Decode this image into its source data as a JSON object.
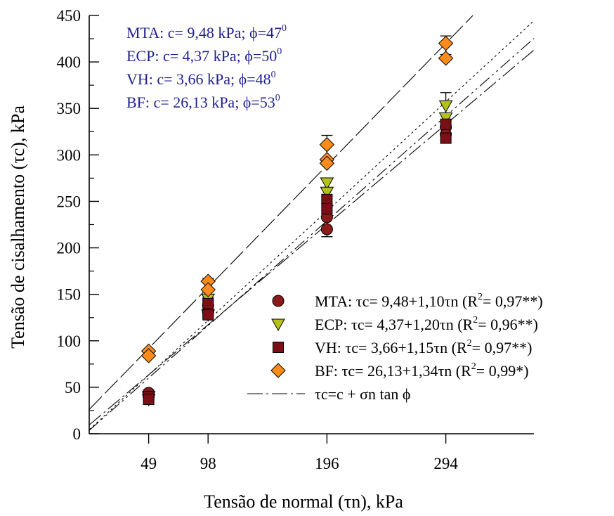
{
  "chart_data": {
    "type": "scatter",
    "xlabel": "Tensão de normal (τn), kPa",
    "ylabel": "Tensão de cisalhamento (τc), kPa",
    "xlim": [
      0,
      360
    ],
    "ylim": [
      0,
      450
    ],
    "x_ticks": [
      49,
      98,
      196,
      294
    ],
    "y_ticks": [
      0,
      50,
      100,
      150,
      200,
      250,
      300,
      350,
      400,
      450
    ],
    "grid": false,
    "legend_position": "bottom-right",
    "parameters": [
      {
        "label": "MTA: c= 9,48 kPa; ϕ=47",
        "sup": "0"
      },
      {
        "label": "ECP: c= 4,37 kPa; ϕ=50",
        "sup": "0"
      },
      {
        "label": "VH: c= 3,66 kPa; ϕ=48",
        "sup": "0"
      },
      {
        "label": "BF: c= 26,13 kPa; ϕ=53",
        "sup": "0"
      }
    ],
    "param_color": "#1f1f8f",
    "series": [
      {
        "name": "MTA",
        "legend": [
          "MTA: τc= 9,48+1,10τn (R",
          "2",
          "= 0,97**)"
        ],
        "marker": "circle",
        "color": "#8b1a1a",
        "intercept": 9.48,
        "slope": 1.1,
        "points": [
          {
            "x": 49,
            "y": 44
          },
          {
            "x": 49,
            "y": 40
          },
          {
            "x": 98,
            "y": 138
          },
          {
            "x": 98,
            "y": 131
          },
          {
            "x": 196,
            "y": 220
          },
          {
            "x": 196,
            "y": 233
          },
          {
            "x": 294,
            "y": 330
          },
          {
            "x": 294,
            "y": 322
          }
        ],
        "errors": [
          {
            "x": 49,
            "y": 42,
            "err": 5
          },
          {
            "x": 98,
            "y": 135,
            "err": 8
          },
          {
            "x": 196,
            "y": 226,
            "err": 14
          },
          {
            "x": 294,
            "y": 326,
            "err": 10
          }
        ]
      },
      {
        "name": "ECP",
        "legend": [
          "ECP: τc= 4,37+1,20τn (R",
          "2",
          "= 0,96**)"
        ],
        "marker": "triangle-down",
        "color": "#b5c21a",
        "intercept": 4.37,
        "slope": 1.2,
        "points": [
          {
            "x": 49,
            "y": 40
          },
          {
            "x": 49,
            "y": 37
          },
          {
            "x": 98,
            "y": 145
          },
          {
            "x": 98,
            "y": 128
          },
          {
            "x": 196,
            "y": 270
          },
          {
            "x": 196,
            "y": 260
          },
          {
            "x": 294,
            "y": 353
          },
          {
            "x": 294,
            "y": 340
          }
        ],
        "errors": [
          {
            "x": 98,
            "y": 137,
            "err": 9
          },
          {
            "x": 196,
            "y": 265,
            "err": 10
          },
          {
            "x": 294,
            "y": 352,
            "err": 15
          }
        ]
      },
      {
        "name": "VH",
        "legend": [
          "VH: τc= 3,66+1,15τn (R",
          "2",
          "= 0,97**)"
        ],
        "marker": "square",
        "color": "#7a1016",
        "intercept": 3.66,
        "slope": 1.15,
        "points": [
          {
            "x": 49,
            "y": 40
          },
          {
            "x": 49,
            "y": 37
          },
          {
            "x": 98,
            "y": 140
          },
          {
            "x": 98,
            "y": 128
          },
          {
            "x": 196,
            "y": 252
          },
          {
            "x": 196,
            "y": 242
          },
          {
            "x": 294,
            "y": 333
          },
          {
            "x": 294,
            "y": 318
          }
        ],
        "errors": [
          {
            "x": 98,
            "y": 135,
            "err": 10
          },
          {
            "x": 196,
            "y": 247,
            "err": 10
          },
          {
            "x": 294,
            "y": 325,
            "err": 12
          }
        ]
      },
      {
        "name": "BF",
        "legend": [
          "BF: τc= 26,13+1,34τn (R",
          "2",
          "= 0,99*)"
        ],
        "marker": "diamond",
        "color": "#ff8c1a",
        "intercept": 26.13,
        "slope": 1.34,
        "points": [
          {
            "x": 49,
            "y": 89
          },
          {
            "x": 49,
            "y": 84
          },
          {
            "x": 98,
            "y": 164
          },
          {
            "x": 98,
            "y": 155
          },
          {
            "x": 196,
            "y": 311
          },
          {
            "x": 196,
            "y": 295
          },
          {
            "x": 196,
            "y": 291
          },
          {
            "x": 294,
            "y": 420
          },
          {
            "x": 294,
            "y": 404
          }
        ],
        "errors": [
          {
            "x": 49,
            "y": 87,
            "err": 4
          },
          {
            "x": 98,
            "y": 160,
            "err": 7
          },
          {
            "x": 196,
            "y": 305,
            "err": 16
          },
          {
            "x": 294,
            "y": 418,
            "err": 10
          }
        ]
      }
    ],
    "line_legend": "τc=c + σn tan ϕ"
  }
}
